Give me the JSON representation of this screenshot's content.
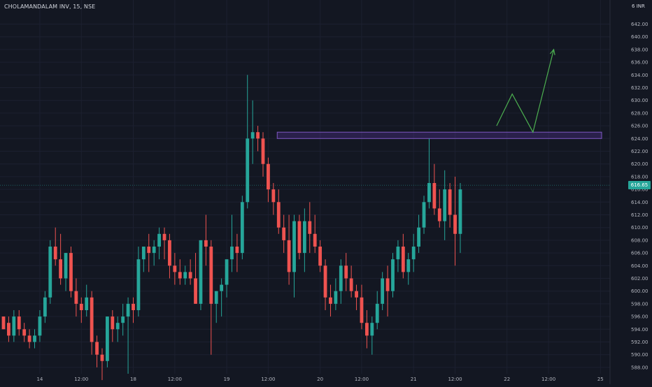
{
  "header": {
    "title": "CHOLAMANDALAM INV, 15, NSE",
    "currency": "INR",
    "axis_top_label": "6"
  },
  "last_price_label": "616.65",
  "colors": {
    "background": "#131722",
    "up": "#26a69a",
    "down": "#ef5350",
    "text": "#b2b5be",
    "zone_fill": "#673ab7",
    "arrow": "#4caf50"
  },
  "chart_data": {
    "type": "candlestick",
    "title": "CHOLAMANDALAM INV, 15, NSE",
    "ylim": [
      587,
      645
    ],
    "y_ticks": [
      "588.00",
      "590.00",
      "592.00",
      "594.00",
      "596.00",
      "598.00",
      "600.00",
      "602.00",
      "604.00",
      "606.00",
      "608.00",
      "610.00",
      "612.00",
      "614.00",
      "616.00",
      "618.00",
      "620.00",
      "622.00",
      "624.00",
      "626.00",
      "628.00",
      "630.00",
      "632.00",
      "634.00",
      "636.00",
      "638.00",
      "640.00",
      "642.00"
    ],
    "x_ticks": [
      {
        "label": "14",
        "index": 7
      },
      {
        "label": "12:00",
        "index": 15
      },
      {
        "label": "18",
        "index": 25
      },
      {
        "label": "12:00",
        "index": 33
      },
      {
        "label": "19",
        "index": 43
      },
      {
        "label": "12:00",
        "index": 51
      },
      {
        "label": "20",
        "index": 61
      },
      {
        "label": "12:00",
        "index": 69
      },
      {
        "label": "21",
        "index": 79
      },
      {
        "label": "12:00",
        "index": 87
      },
      {
        "label": "22",
        "index": 97
      },
      {
        "label": "12:00",
        "index": 105
      },
      {
        "label": "25",
        "index": 115
      }
    ],
    "candles": [
      [
        596,
        596,
        594,
        594
      ],
      [
        595,
        596,
        592,
        593
      ],
      [
        593,
        597,
        592,
        596
      ],
      [
        596,
        597,
        593,
        594
      ],
      [
        594,
        595,
        592,
        593
      ],
      [
        593,
        594,
        591,
        592
      ],
      [
        592,
        594,
        591,
        593
      ],
      [
        593,
        597,
        592,
        596
      ],
      [
        596,
        600,
        595,
        599
      ],
      [
        599,
        608,
        598,
        607
      ],
      [
        607,
        610,
        604,
        605
      ],
      [
        605,
        609,
        601,
        602
      ],
      [
        602,
        606,
        600,
        606
      ],
      [
        606,
        607,
        599,
        600
      ],
      [
        600,
        602,
        596,
        598
      ],
      [
        598,
        599,
        595,
        597
      ],
      [
        597,
        601,
        596,
        599
      ],
      [
        599,
        600,
        590,
        592
      ],
      [
        592,
        593,
        588,
        590
      ],
      [
        590,
        591,
        586,
        589
      ],
      [
        589,
        596,
        588,
        596
      ],
      [
        596,
        597,
        592,
        594
      ],
      [
        594,
        596,
        592,
        595
      ],
      [
        595,
        598,
        593,
        596
      ],
      [
        596,
        599,
        587,
        598
      ],
      [
        598,
        599,
        595,
        597
      ],
      [
        597,
        607,
        596,
        605
      ],
      [
        605,
        607,
        603,
        607
      ],
      [
        607,
        609,
        603,
        606
      ],
      [
        606,
        608,
        604,
        607
      ],
      [
        607,
        610,
        605,
        609
      ],
      [
        609,
        610,
        605,
        608
      ],
      [
        608,
        609,
        602,
        604
      ],
      [
        604,
        606,
        601,
        603
      ],
      [
        603,
        605,
        601,
        602
      ],
      [
        602,
        604,
        601,
        603
      ],
      [
        603,
        605,
        601,
        602
      ],
      [
        602,
        606,
        598,
        598
      ],
      [
        598,
        608,
        597,
        608
      ],
      [
        608,
        612,
        604,
        607
      ],
      [
        607,
        608,
        590,
        598
      ],
      [
        598,
        600,
        595,
        600
      ],
      [
        600,
        602,
        596,
        601
      ],
      [
        601,
        605,
        599,
        605
      ],
      [
        605,
        612,
        603,
        607
      ],
      [
        607,
        609,
        603,
        606
      ],
      [
        606,
        615,
        605,
        614
      ],
      [
        614,
        634,
        613,
        624
      ],
      [
        624,
        630,
        620,
        625
      ],
      [
        625,
        626,
        622,
        624
      ],
      [
        624,
        625,
        618,
        620
      ],
      [
        620,
        621,
        614,
        616
      ],
      [
        616,
        617,
        612,
        614
      ],
      [
        614,
        616,
        609,
        610
      ],
      [
        610,
        612,
        606,
        608
      ],
      [
        608,
        612,
        601,
        603
      ],
      [
        603,
        612,
        599,
        611
      ],
      [
        611,
        612,
        605,
        606
      ],
      [
        606,
        613,
        603,
        611
      ],
      [
        611,
        614,
        606,
        609
      ],
      [
        609,
        612,
        606,
        607
      ],
      [
        607,
        608,
        603,
        604
      ],
      [
        604,
        605,
        597,
        599
      ],
      [
        599,
        601,
        596,
        598
      ],
      [
        598,
        602,
        597,
        600
      ],
      [
        600,
        605,
        598,
        604
      ],
      [
        604,
        606,
        600,
        602
      ],
      [
        602,
        604,
        599,
        600
      ],
      [
        600,
        601,
        597,
        599
      ],
      [
        599,
        601,
        594,
        595
      ],
      [
        595,
        597,
        591,
        593
      ],
      [
        593,
        596,
        590,
        595
      ],
      [
        595,
        600,
        594,
        598
      ],
      [
        598,
        603,
        597,
        602
      ],
      [
        602,
        604,
        596,
        600
      ],
      [
        600,
        606,
        599,
        605
      ],
      [
        605,
        608,
        603,
        607
      ],
      [
        607,
        609,
        602,
        603
      ],
      [
        603,
        606,
        601,
        605
      ],
      [
        605,
        609,
        603,
        607
      ],
      [
        607,
        612,
        606,
        610
      ],
      [
        610,
        615,
        609,
        614
      ],
      [
        614,
        624,
        613,
        617
      ],
      [
        617,
        620,
        612,
        613
      ],
      [
        613,
        616,
        610,
        611
      ],
      [
        611,
        619,
        608,
        616
      ],
      [
        616,
        617,
        610,
        612
      ],
      [
        612,
        618,
        604,
        609
      ],
      [
        609,
        617,
        606,
        616
      ]
    ],
    "last_price": 616.65,
    "resistance_zone": [
      624,
      625
    ],
    "projection_path": [
      [
        95,
        626
      ],
      [
        98,
        631
      ],
      [
        102,
        625
      ],
      [
        106,
        638
      ]
    ]
  }
}
